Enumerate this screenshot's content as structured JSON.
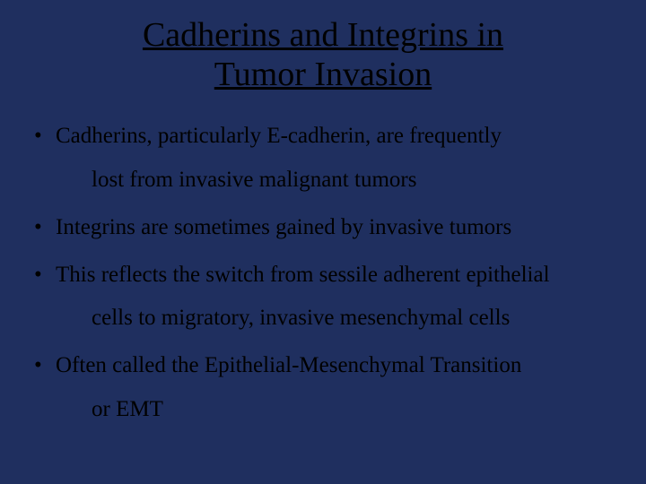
{
  "slide": {
    "background_color": "#1f2f5f",
    "text_color": "#000000",
    "title": {
      "line1": "Cadherins and Integrins in",
      "line2": "Tumor Invasion",
      "fontsize": 38,
      "underline": true,
      "align": "center"
    },
    "bullets": [
      {
        "text": "Cadherins, particularly E-cadherin, are frequently",
        "continuation": "lost from invasive malignant tumors"
      },
      {
        "text": "Integrins are sometimes gained by invasive tumors",
        "continuation": null
      },
      {
        "text": "This reflects the switch from sessile adherent epithelial",
        "continuation": "cells to migratory, invasive mesenchymal cells"
      },
      {
        "text": "Often called the Epithelial-Mesenchymal Transition",
        "continuation": "or EMT"
      }
    ],
    "bullet_fontsize": 25,
    "font_family": "Times New Roman"
  }
}
